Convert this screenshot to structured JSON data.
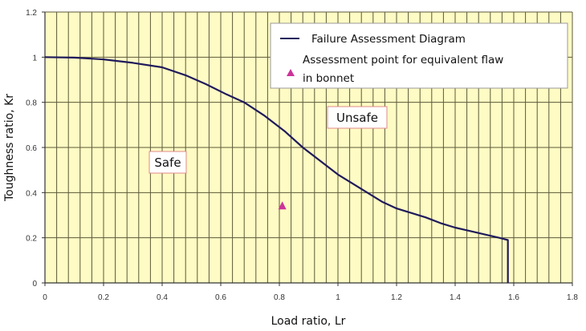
{
  "chart_data": {
    "type": "line",
    "title": "",
    "xlabel": "Load ratio, Lr",
    "ylabel": "Toughness ratio, Kr",
    "xlim": [
      0,
      1.8
    ],
    "ylim": [
      0,
      1.2
    ],
    "x_ticks": [
      "0",
      "0.2",
      "0.4",
      "0.6",
      "0.8",
      "1",
      "1.2",
      "1.4",
      "1.6",
      "1.8"
    ],
    "y_ticks": [
      "0",
      "0.2",
      "0.4",
      "0.6",
      "0.8",
      "1",
      "1.2"
    ],
    "grid": {
      "vertical_step": 0.04,
      "horizontal_step": 0.2
    },
    "background_color": "#FFFBC4",
    "legend_position": "upper right",
    "series": [
      {
        "name": "Failure Assessment Diagram",
        "kind": "line",
        "color": "#1F1A5C",
        "x": [
          0,
          0.1,
          0.2,
          0.3,
          0.4,
          0.48,
          0.55,
          0.62,
          0.68,
          0.75,
          0.82,
          0.88,
          0.94,
          1.0,
          1.05,
          1.1,
          1.15,
          1.2,
          1.25,
          1.3,
          1.35,
          1.4,
          1.45,
          1.5,
          1.55,
          1.58,
          1.58
        ],
        "y": [
          1.0,
          0.998,
          0.99,
          0.975,
          0.955,
          0.92,
          0.88,
          0.835,
          0.8,
          0.74,
          0.67,
          0.6,
          0.54,
          0.48,
          0.44,
          0.4,
          0.36,
          0.33,
          0.31,
          0.29,
          0.265,
          0.245,
          0.23,
          0.215,
          0.2,
          0.19,
          0
        ]
      },
      {
        "name": "Assessment point for equivalent flaw in bonnet",
        "kind": "scatter",
        "marker": "triangle",
        "color": "#CC3399",
        "x": [
          0.81
        ],
        "y": [
          0.34
        ]
      }
    ],
    "legend": [
      {
        "label": "Failure Assessment Diagram",
        "symbol": "line"
      },
      {
        "label_line1": "Assessment point for equivalent flaw",
        "label_line2": "in bonnet",
        "symbol": "triangle"
      }
    ],
    "annotations": [
      {
        "text": "Safe",
        "x": 0.46,
        "y": 0.41
      },
      {
        "text": "Unsafe",
        "x": 1.04,
        "y": 0.68
      }
    ]
  }
}
